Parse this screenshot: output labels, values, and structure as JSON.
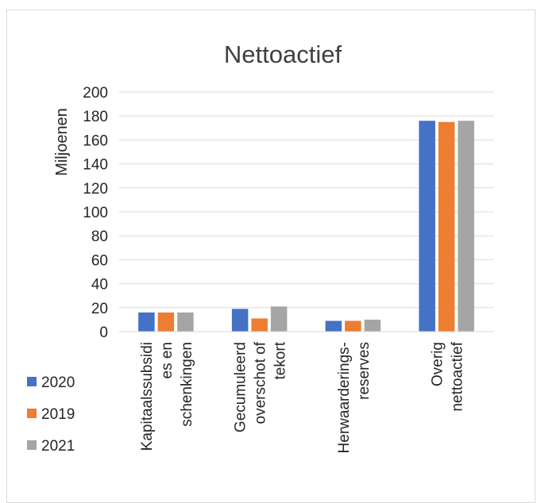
{
  "chart_data": {
    "type": "bar",
    "title": "Nettoactief",
    "xlabel": "",
    "ylabel": "Miljoenen",
    "ylim": [
      0,
      200
    ],
    "yticks": [
      0,
      20,
      40,
      60,
      80,
      100,
      120,
      140,
      160,
      180,
      200
    ],
    "grid": true,
    "legend_position": "bottom-left",
    "categories": [
      "Kapitaalssubsidi es en schenkingen",
      "Gecumuleerd overschot of tekort",
      "Herwaarderings- reserves",
      "Overig nettoactief"
    ],
    "category_lines": [
      [
        "Kapitaalssubsidi",
        "es en",
        "schenkingen"
      ],
      [
        "Gecumuleerd",
        "overschot of",
        "tekort"
      ],
      [
        "Herwaarderings-",
        "reserves"
      ],
      [
        "Overig",
        "nettoactief"
      ]
    ],
    "series": [
      {
        "name": "2020",
        "color": "#4472c4",
        "values": [
          16,
          19,
          9,
          176
        ]
      },
      {
        "name": "2019",
        "color": "#ed7d31",
        "values": [
          16,
          11,
          9,
          175
        ]
      },
      {
        "name": "2021",
        "color": "#a5a5a5",
        "values": [
          16,
          21,
          10,
          176
        ]
      }
    ]
  }
}
